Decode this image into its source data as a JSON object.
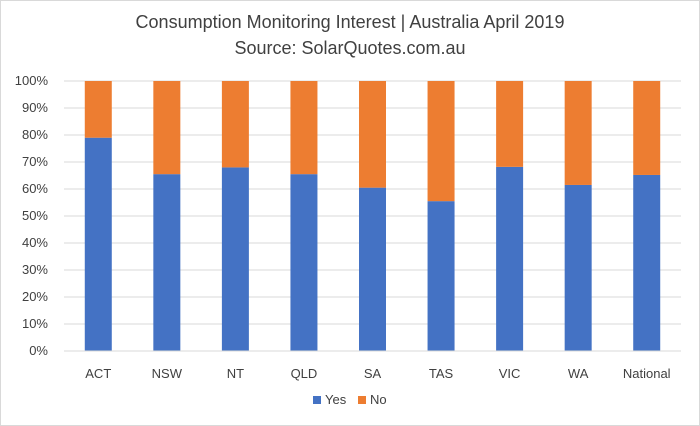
{
  "chart_data": {
    "type": "bar",
    "stacked": true,
    "title": "Consumption Monitoring Interest | Australia April 2019",
    "subtitle": "Source: SolarQuotes.com.au",
    "categories": [
      "ACT",
      "NSW",
      "NT",
      "QLD",
      "SA",
      "TAS",
      "VIC",
      "WA",
      "National"
    ],
    "series": [
      {
        "name": "Yes",
        "color": "#4472c4",
        "values": [
          79,
          65.5,
          68,
          65.5,
          60.5,
          55.5,
          68.2,
          61.5,
          65.2
        ]
      },
      {
        "name": "No",
        "color": "#ed7d31",
        "values": [
          21,
          34.5,
          32,
          34.5,
          39.5,
          44.5,
          31.8,
          38.5,
          34.8
        ]
      }
    ],
    "y_ticks": [
      "0%",
      "10%",
      "20%",
      "30%",
      "40%",
      "50%",
      "60%",
      "70%",
      "80%",
      "90%",
      "100%"
    ],
    "ylim": [
      0,
      100
    ],
    "grid": true,
    "legend_position": "bottom"
  }
}
